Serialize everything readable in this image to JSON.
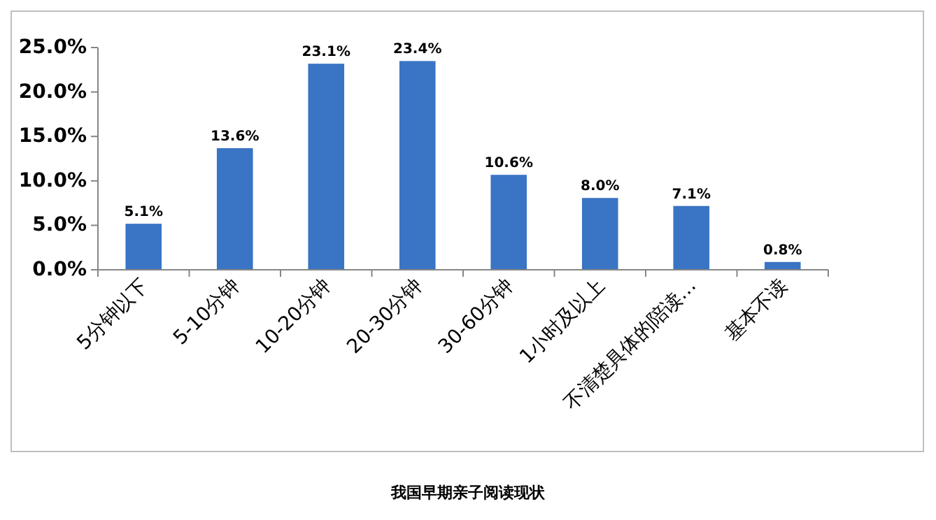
{
  "chart_data": {
    "type": "bar",
    "title": "我国早期亲子阅读现状",
    "categories": [
      "5分钟以下",
      "5-10分钟",
      "10-20分钟",
      "20-30分钟",
      "30-60分钟",
      "1小时及以上",
      "不清楚具体的陪读…",
      "基本不读"
    ],
    "values": [
      5.1,
      13.6,
      23.1,
      23.4,
      10.6,
      8.0,
      7.1,
      0.8
    ],
    "value_labels": [
      "5.1%",
      "13.6%",
      "23.1%",
      "23.4%",
      "10.6%",
      "8.0%",
      "7.1%",
      "0.8%"
    ],
    "color": "#3a74c4",
    "ylim": [
      0,
      25
    ],
    "yticks": [
      {
        "value": 0,
        "label": "0.0%"
      },
      {
        "value": 5,
        "label": "5.0%"
      },
      {
        "value": 10,
        "label": "10.0%"
      },
      {
        "value": 15,
        "label": "15.0%"
      },
      {
        "value": 20,
        "label": "20.0%"
      },
      {
        "value": 25,
        "label": "25.0%"
      }
    ],
    "grid": false
  }
}
